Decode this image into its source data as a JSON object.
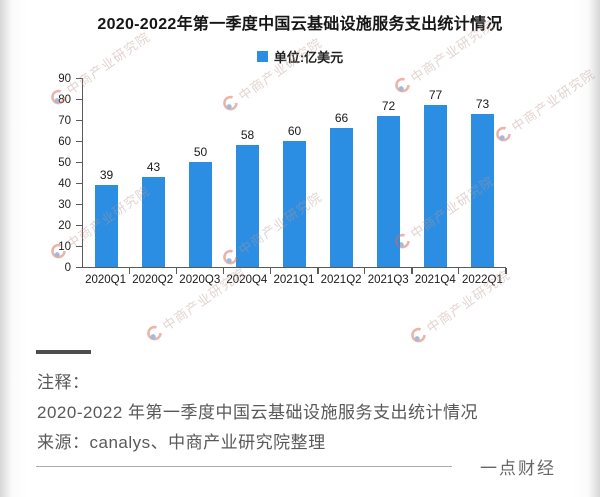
{
  "chart": {
    "title": "2020-2022年第一季度中国云基础设施服务支出统计情况"
  },
  "chart_data": {
    "type": "bar",
    "title": "2020-2022年第一季度中国云基础设施服务支出统计情况",
    "legend": "单位:亿美元",
    "legend_position": "top",
    "categories": [
      "2020Q1",
      "2020Q2",
      "2020Q3",
      "2020Q4",
      "2021Q1",
      "2021Q2",
      "2021Q3",
      "2021Q4",
      "2022Q1"
    ],
    "values": [
      39,
      43,
      50,
      58,
      60,
      66,
      72,
      77,
      73
    ],
    "xlabel": "",
    "ylabel": "",
    "ylim": [
      0,
      90
    ],
    "ytick_step": 10,
    "grid": false,
    "bar_color": "#2b8ee2"
  },
  "watermark": {
    "text": "中商产业研究院"
  },
  "notes": {
    "label": "注释：",
    "line1": "2020-2022 年第一季度中国云基础设施服务支出统计情况",
    "line2": "来源：canalys、中商产业研究院整理"
  },
  "footer": {
    "brand": "一点财经"
  }
}
